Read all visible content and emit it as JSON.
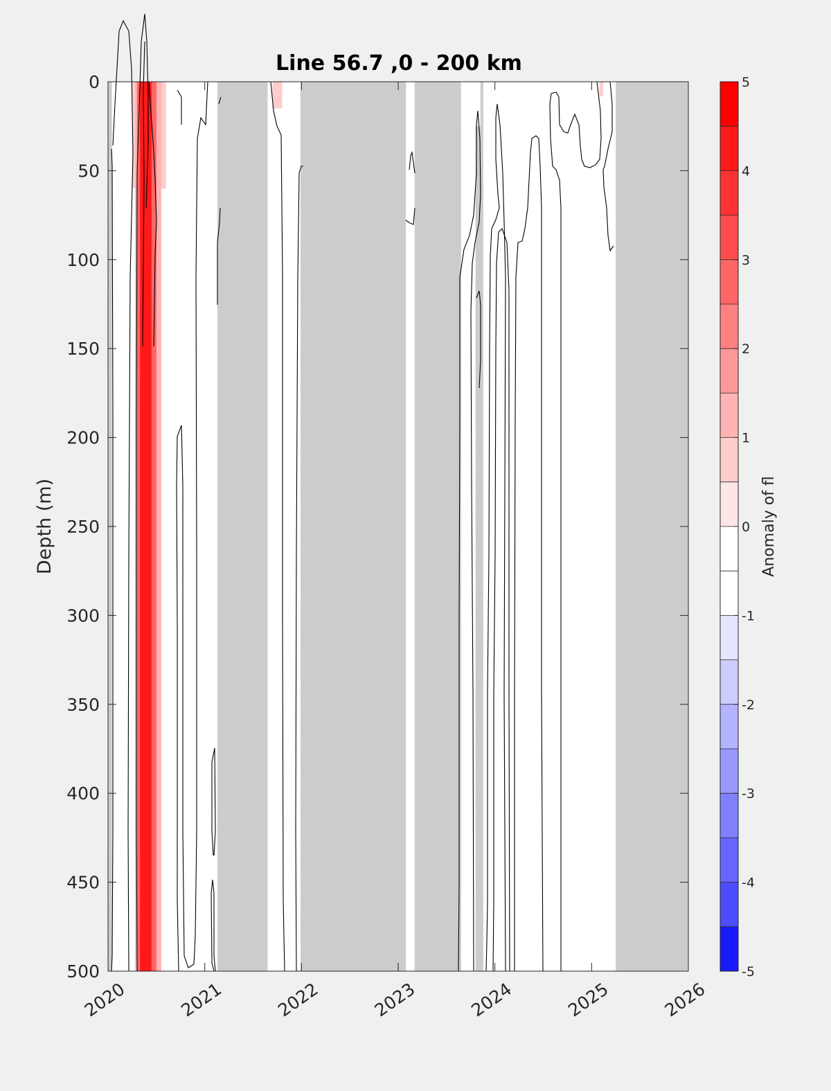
{
  "chart_data": {
    "type": "heatmap",
    "title": "Line 56.7 ,0 - 200 km",
    "ylabel": "Depth (m)",
    "xlabel": "",
    "x_ticks": [
      "2020",
      "2021",
      "2022",
      "2023",
      "2024",
      "2025",
      "2026"
    ],
    "y_ticks": [
      "0",
      "50",
      "100",
      "150",
      "200",
      "250",
      "300",
      "350",
      "400",
      "450",
      "500"
    ],
    "xlim": [
      2020,
      2026
    ],
    "ylim": [
      0,
      500
    ],
    "y_reversed": true,
    "colorbar": {
      "label": "Anomaly of fl",
      "ticks": [
        "5",
        "4",
        "3",
        "2",
        "1",
        "0",
        "-1",
        "-2",
        "-3",
        "-4",
        "-5"
      ],
      "range": [
        -5,
        5
      ],
      "levels": [
        {
          "from": 4.5,
          "to": 5.0,
          "color": "#ff0000"
        },
        {
          "from": 4.0,
          "to": 4.5,
          "color": "#ff1a1a"
        },
        {
          "from": 3.5,
          "to": 4.0,
          "color": "#ff3333"
        },
        {
          "from": 3.0,
          "to": 3.5,
          "color": "#ff4d4d"
        },
        {
          "from": 2.5,
          "to": 3.0,
          "color": "#ff6666"
        },
        {
          "from": 2.0,
          "to": 2.5,
          "color": "#ff8080"
        },
        {
          "from": 1.5,
          "to": 2.0,
          "color": "#ff9999"
        },
        {
          "from": 1.0,
          "to": 1.5,
          "color": "#ffb3b3"
        },
        {
          "from": 0.5,
          "to": 1.0,
          "color": "#ffcccc"
        },
        {
          "from": 0.0,
          "to": 0.5,
          "color": "#ffe6e6"
        },
        {
          "from": -0.5,
          "to": 0.0,
          "color": "#ffffff"
        },
        {
          "from": -1.0,
          "to": -0.5,
          "color": "#ffffff"
        },
        {
          "from": -1.5,
          "to": -1.0,
          "color": "#e6e6ff"
        },
        {
          "from": -2.0,
          "to": -1.5,
          "color": "#ccccff"
        },
        {
          "from": -2.5,
          "to": -2.0,
          "color": "#b3b3ff"
        },
        {
          "from": -3.0,
          "to": -2.5,
          "color": "#9999ff"
        },
        {
          "from": -3.5,
          "to": -3.0,
          "color": "#8080ff"
        },
        {
          "from": -4.0,
          "to": -3.5,
          "color": "#6666ff"
        },
        {
          "from": -4.5,
          "to": -4.0,
          "color": "#4d4dff"
        },
        {
          "from": -5.0,
          "to": -4.5,
          "color": "#1a1aff"
        }
      ]
    },
    "no_data_color": "#cccccc",
    "no_data_periods": [
      [
        2020.0,
        2020.04
      ],
      [
        2021.13,
        2021.65
      ],
      [
        2021.99,
        2023.08
      ],
      [
        2023.17,
        2023.65
      ],
      [
        2023.8,
        2023.88
      ],
      [
        2025.25,
        2026.0
      ]
    ],
    "anomaly_features": [
      {
        "x_range": [
          2020.33,
          2020.45
        ],
        "depth_range": [
          0,
          500
        ],
        "anomaly": 4.2
      },
      {
        "x_range": [
          2020.3,
          2020.5
        ],
        "depth_range": [
          0,
          500
        ],
        "anomaly": 2.5
      },
      {
        "x_range": [
          2020.28,
          2020.55
        ],
        "depth_range": [
          0,
          500
        ],
        "anomaly": 1.2
      },
      {
        "x_range": [
          2020.25,
          2020.6
        ],
        "depth_range": [
          0,
          60
        ],
        "anomaly": 0.8
      },
      {
        "x_range": [
          2021.7,
          2021.8
        ],
        "depth_range": [
          0,
          15
        ],
        "anomaly": 0.8
      },
      {
        "x_range": [
          2023.65,
          2023.85
        ],
        "depth_range": [
          0,
          25
        ],
        "anomaly": -0.8
      },
      {
        "x_range": [
          2024.4,
          2024.65
        ],
        "depth_range": [
          0,
          25
        ],
        "anomaly": -0.8
      },
      {
        "x_range": [
          2025.08,
          2025.12
        ],
        "depth_range": [
          0,
          8
        ],
        "anomaly": 0.8
      }
    ]
  }
}
